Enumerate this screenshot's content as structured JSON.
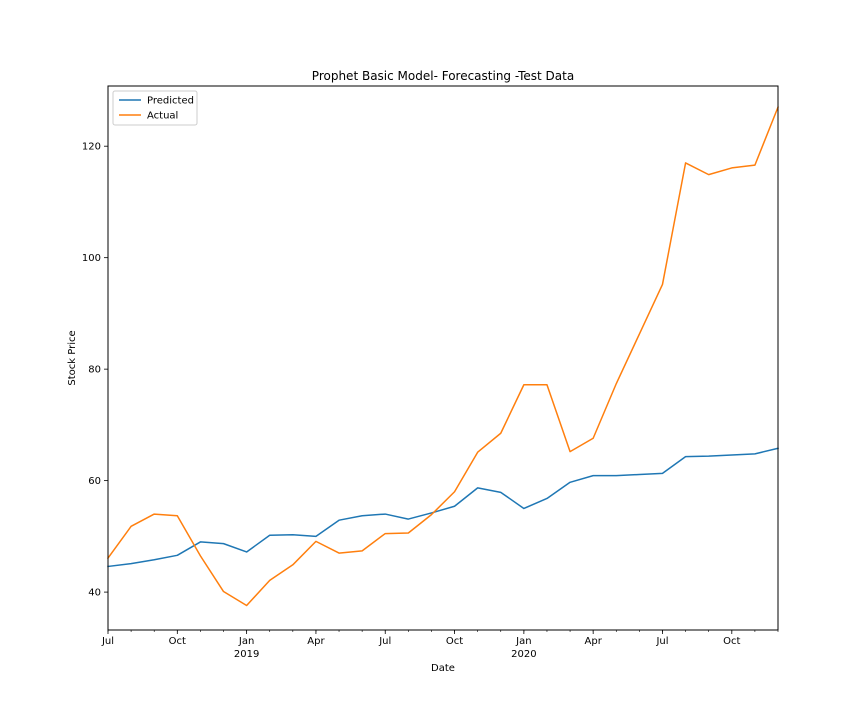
{
  "chart_data": {
    "type": "line",
    "title": "Prophet Basic Model- Forecasting -Test Data",
    "xlabel": "Date",
    "ylabel": "Stock Price",
    "x": [
      "2018-07",
      "2018-08",
      "2018-09",
      "2018-10",
      "2018-11",
      "2018-12",
      "2019-01",
      "2019-02",
      "2019-03",
      "2019-04",
      "2019-05",
      "2019-06",
      "2019-07",
      "2019-08",
      "2019-09",
      "2019-10",
      "2019-11",
      "2019-12",
      "2020-01",
      "2020-02",
      "2020-03",
      "2020-04",
      "2020-05",
      "2020-06",
      "2020-07",
      "2020-08",
      "2020-09",
      "2020-10",
      "2020-11",
      "2020-12"
    ],
    "xlim": [
      "2018-07",
      "2020-12"
    ],
    "ylim": [
      33.2,
      130.8
    ],
    "x_ticks": [
      {
        "date": "2018-07",
        "label": "Jul",
        "sublabel": ""
      },
      {
        "date": "2018-10",
        "label": "Oct",
        "sublabel": ""
      },
      {
        "date": "2019-01",
        "label": "Jan",
        "sublabel": "2019"
      },
      {
        "date": "2019-04",
        "label": "Apr",
        "sublabel": ""
      },
      {
        "date": "2019-07",
        "label": "Jul",
        "sublabel": ""
      },
      {
        "date": "2019-10",
        "label": "Oct",
        "sublabel": ""
      },
      {
        "date": "2020-01",
        "label": "Jan",
        "sublabel": "2020"
      },
      {
        "date": "2020-04",
        "label": "Apr",
        "sublabel": ""
      },
      {
        "date": "2020-07",
        "label": "Jul",
        "sublabel": ""
      },
      {
        "date": "2020-10",
        "label": "Oct",
        "sublabel": ""
      }
    ],
    "y_ticks": [
      40,
      60,
      80,
      100,
      120
    ],
    "grid": false,
    "legend_position": "top-left",
    "series": [
      {
        "name": "Predicted",
        "color": "#1f77b4",
        "values": [
          44.6,
          45.1,
          45.8,
          46.6,
          49.0,
          48.7,
          47.2,
          50.2,
          50.3,
          50.0,
          52.9,
          53.7,
          54.0,
          53.1,
          54.2,
          55.4,
          58.7,
          57.9,
          55.0,
          56.8,
          59.7,
          60.9,
          60.9,
          61.1,
          61.3,
          64.3,
          64.4,
          64.6,
          64.8,
          65.8
        ]
      },
      {
        "name": "Actual",
        "color": "#ff7f0e",
        "values": [
          46.1,
          51.8,
          54.0,
          53.7,
          46.5,
          40.1,
          37.6,
          42.1,
          44.9,
          49.1,
          47.0,
          47.4,
          50.5,
          50.6,
          53.9,
          58.0,
          65.1,
          68.5,
          77.2,
          77.2,
          65.2,
          67.6,
          77.4,
          86.3,
          95.2,
          117.0,
          114.9,
          116.1,
          116.6,
          127.0
        ]
      }
    ]
  }
}
